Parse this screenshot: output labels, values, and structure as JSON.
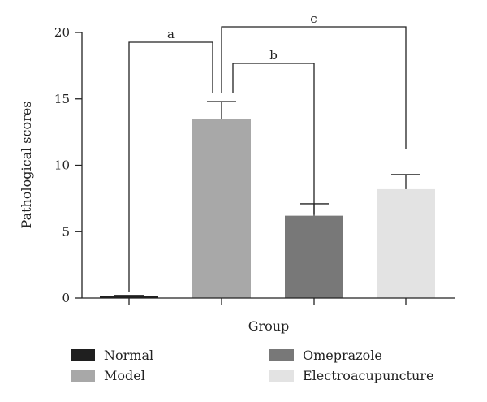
{
  "chart_data": {
    "type": "bar",
    "categories": [
      "Normal",
      "Model",
      "Omeprazole",
      "Electroacupuncture"
    ],
    "values": [
      0.1,
      13.5,
      6.2,
      8.2
    ],
    "errors": [
      0.1,
      1.3,
      0.9,
      1.1
    ],
    "colors": [
      "#1f1f1f",
      "#a8a8a8",
      "#787878",
      "#e3e3e3"
    ],
    "xlabel": "Group",
    "ylabel": "Pathological scores",
    "ylim": [
      0,
      20
    ],
    "yticks": [
      0,
      5,
      10,
      15,
      20
    ],
    "grid": false,
    "legend_position": "bottom",
    "significance": [
      {
        "label": "a",
        "from": 0,
        "to": 1
      },
      {
        "label": "b",
        "from": 1,
        "to": 2
      },
      {
        "label": "c",
        "from": 1,
        "to": 3
      }
    ]
  }
}
